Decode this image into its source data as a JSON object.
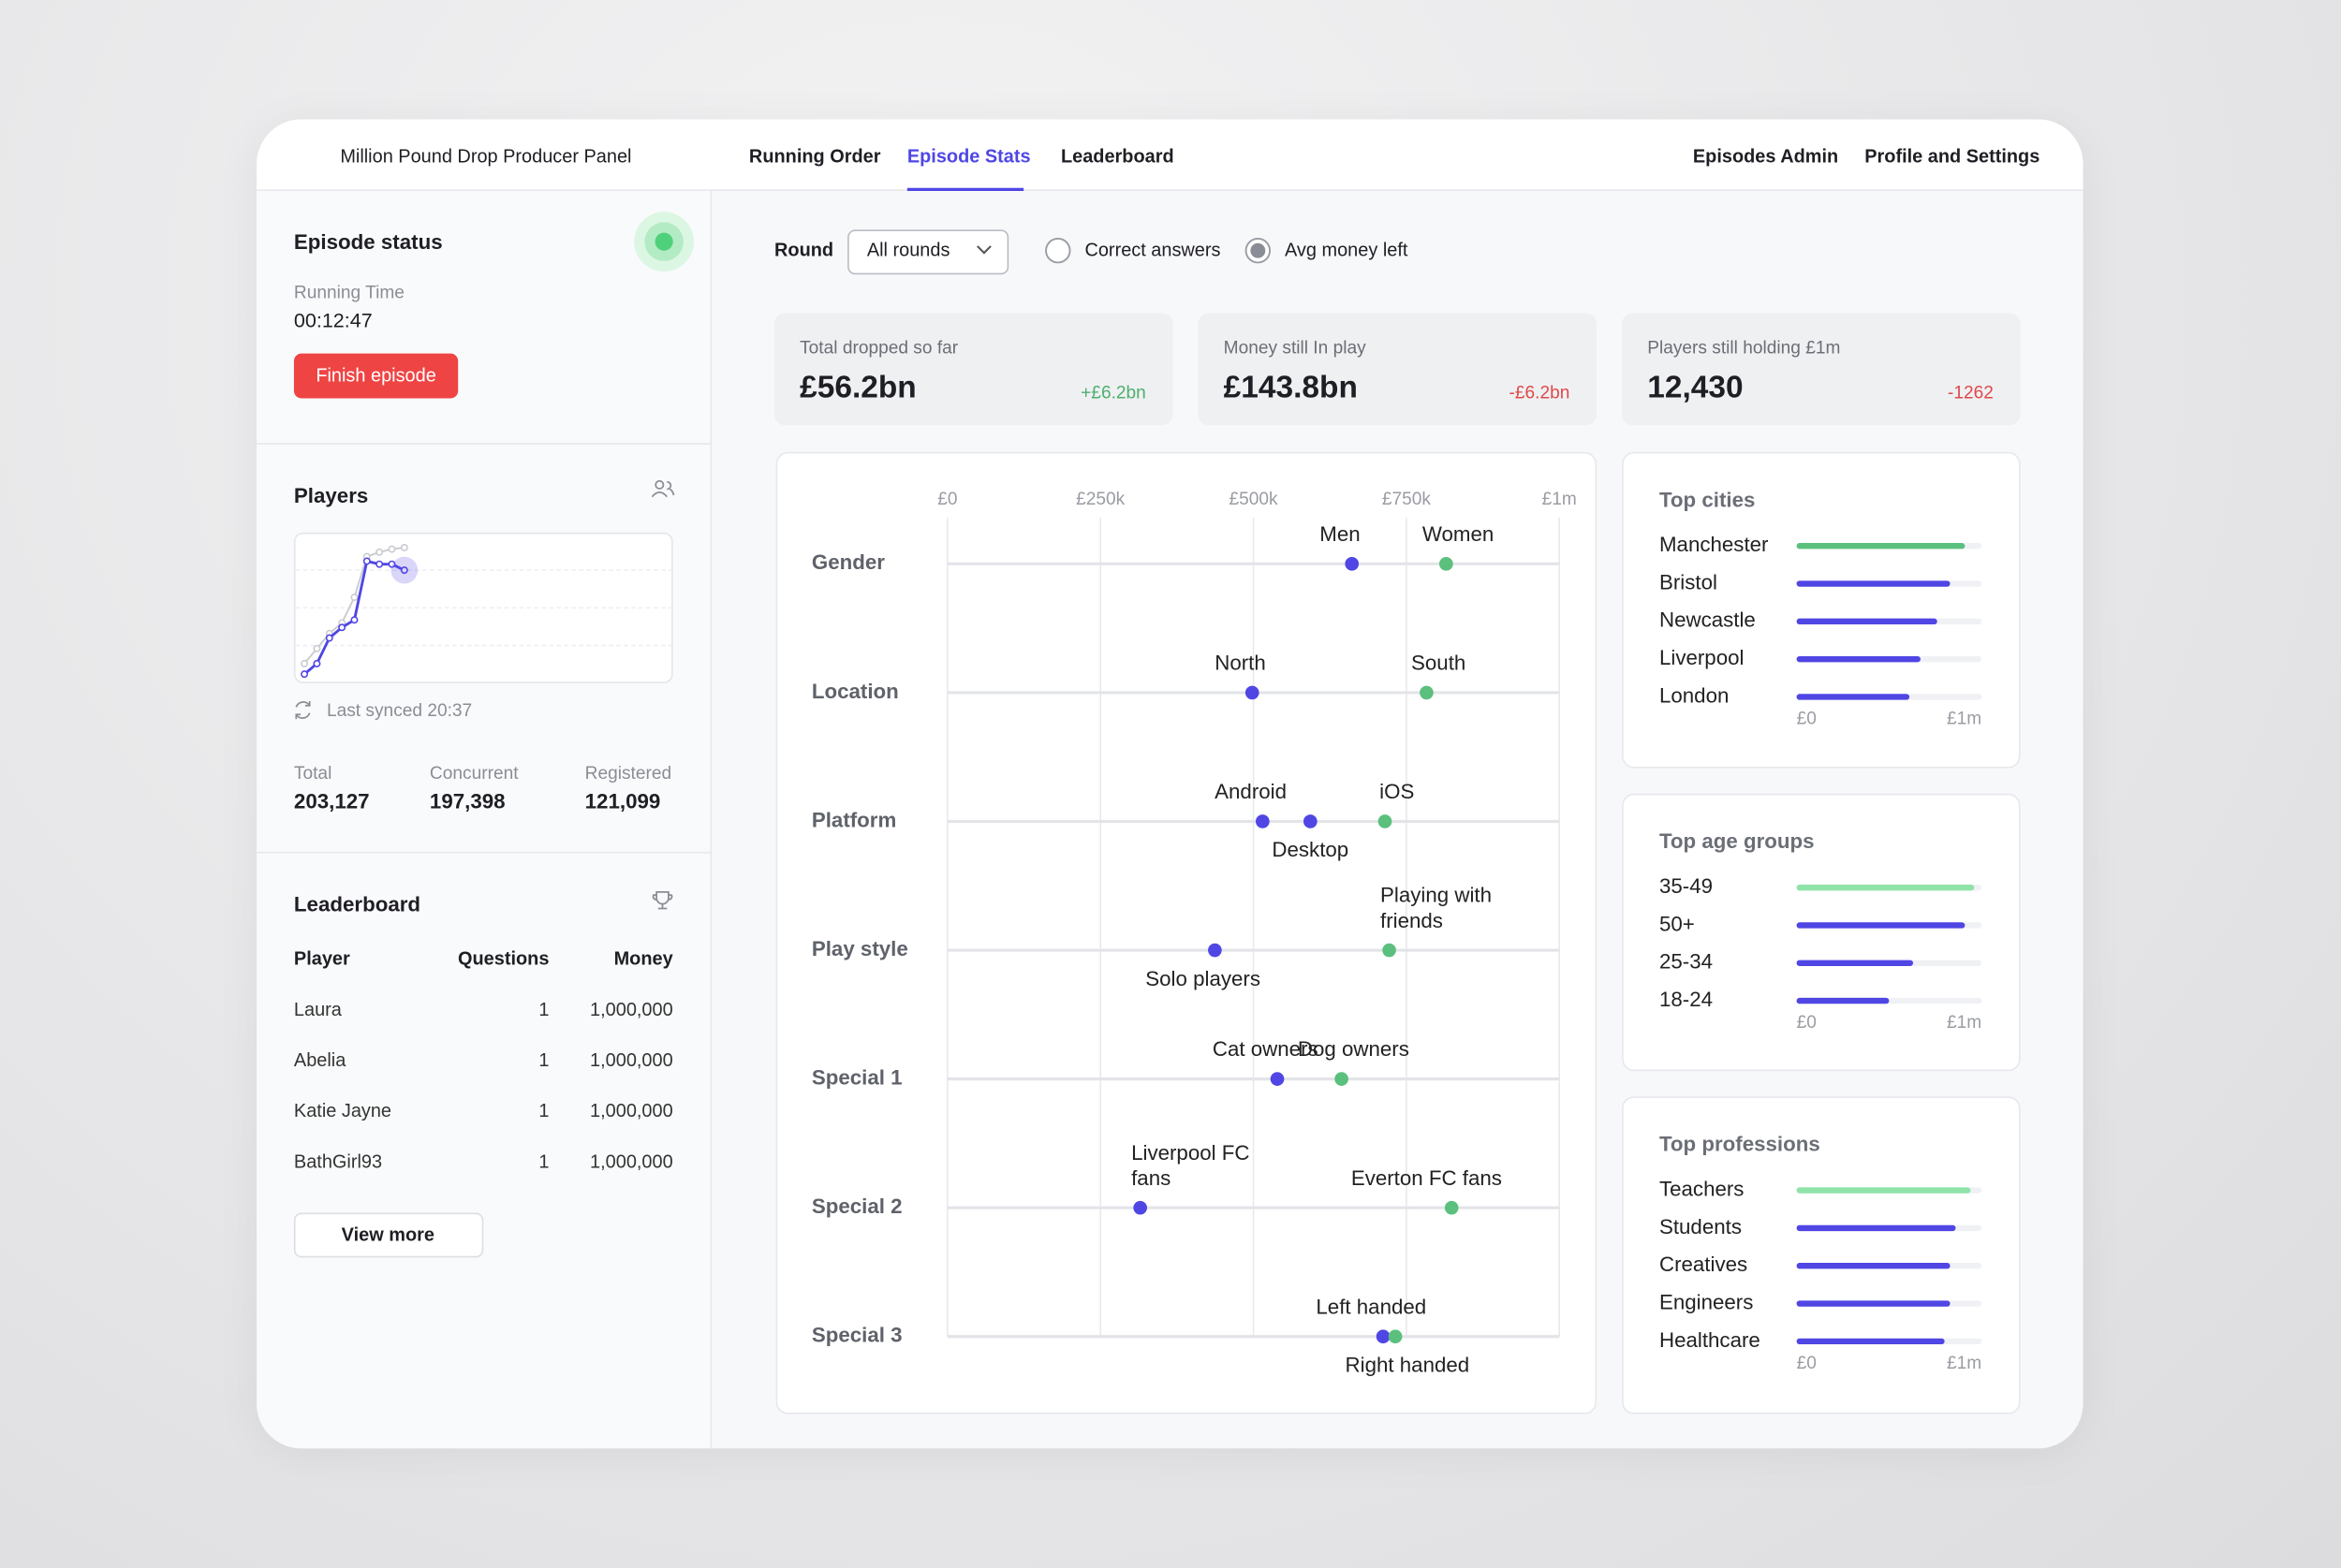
{
  "header": {
    "title": "Million Pound Drop Producer Panel",
    "nav": [
      {
        "label": "Running Order"
      },
      {
        "label": "Episode Stats",
        "active": true
      },
      {
        "label": "Leaderboard"
      }
    ],
    "right_nav": [
      "Episodes Admin",
      "Profile and Settings"
    ]
  },
  "episode_status": {
    "title": "Episode status",
    "running_time_label": "Running Time",
    "running_time": "00:12:47",
    "button": "Finish episode"
  },
  "players": {
    "title": "Players",
    "chart": {
      "type": "line",
      "ylim": [
        0,
        100
      ],
      "yticks": [
        25,
        50,
        75
      ],
      "grid": true,
      "series": [
        {
          "color": "#c9cbd1",
          "values": [
            13,
            23,
            33,
            40,
            57,
            84,
            87,
            89,
            90
          ]
        },
        {
          "color": "#5046e4",
          "values": [
            6,
            13,
            30,
            37,
            42,
            81,
            79,
            79,
            75
          ]
        }
      ]
    },
    "sync": "Last synced 20:37",
    "stats": [
      {
        "label": "Total",
        "value": "203,127"
      },
      {
        "label": "Concurrent",
        "value": "197,398"
      },
      {
        "label": "Registered",
        "value": "121,099"
      }
    ]
  },
  "leaderboard": {
    "title": "Leaderboard",
    "columns": [
      "Player",
      "Questions",
      "Money"
    ],
    "rows": [
      [
        "Laura",
        "1",
        "1,000,000"
      ],
      [
        "Abelia",
        "1",
        "1,000,000"
      ],
      [
        "Katie Jayne",
        "1",
        "1,000,000"
      ],
      [
        "BathGirl93",
        "1",
        "1,000,000"
      ]
    ],
    "button": "View more"
  },
  "filters": {
    "round_label": "Round",
    "round_value": "All rounds",
    "options": [
      {
        "label": "Correct answers",
        "selected": false
      },
      {
        "label": "Avg money left",
        "selected": true
      }
    ]
  },
  "kpis": [
    {
      "label": "Total dropped so far",
      "value": "£56.2bn",
      "delta": "+£6.2bn",
      "delta_color": "#4caf6e"
    },
    {
      "label": "Money still In play",
      "value": "£143.8bn",
      "delta": "-£6.2bn",
      "delta_color": "#e04848"
    },
    {
      "label": "Players still holding £1m",
      "value": "12,430",
      "delta": "-1262",
      "delta_color": "#e04848"
    }
  ],
  "dot_plot": {
    "type": "dot",
    "xlim": [
      0,
      1000000
    ],
    "xticks": [
      {
        "value": 0,
        "label": "£0"
      },
      {
        "value": 250000,
        "label": "£250k"
      },
      {
        "value": 500000,
        "label": "£500k"
      },
      {
        "value": 750000,
        "label": "£750k"
      },
      {
        "value": 1000000,
        "label": "£1m"
      }
    ],
    "grid": true,
    "rows": [
      {
        "name": "Gender",
        "points": [
          {
            "name": "Men",
            "value": 661000,
            "color": "#5046e4"
          },
          {
            "name": "Women",
            "value": 815000,
            "color": "#5bc07d"
          }
        ]
      },
      {
        "name": "Location",
        "points": [
          {
            "name": "North",
            "value": 498000,
            "color": "#5046e4"
          },
          {
            "name": "South",
            "value": 783000,
            "color": "#5bc07d"
          }
        ]
      },
      {
        "name": "Platform",
        "points": [
          {
            "name": "Android",
            "value": 515000,
            "color": "#5046e4"
          },
          {
            "name": "Desktop",
            "value": 593000,
            "color": "#5046e4"
          },
          {
            "name": "iOS",
            "value": 715000,
            "color": "#5bc07d"
          }
        ]
      },
      {
        "name": "Play style",
        "points": [
          {
            "name": "Solo players",
            "value": 437000,
            "color": "#5046e4"
          },
          {
            "name": "Playing with friends",
            "value": 722000,
            "color": "#5bc07d"
          }
        ]
      },
      {
        "name": "Special 1",
        "points": [
          {
            "name": "Cat owners",
            "value": 539000,
            "color": "#5046e4"
          },
          {
            "name": "Dog owners",
            "value": 644000,
            "color": "#5bc07d"
          }
        ]
      },
      {
        "name": "Special 2",
        "points": [
          {
            "name": "Liverpool FC fans",
            "value": 315000,
            "color": "#5046e4"
          },
          {
            "name": "Everton FC fans",
            "value": 824000,
            "color": "#5bc07d"
          }
        ]
      },
      {
        "name": "Special 3",
        "points": [
          {
            "name": "Left handed",
            "value": 712000,
            "color": "#5046e4"
          },
          {
            "name": "Right handed",
            "value": 732000,
            "color": "#5bc07d"
          }
        ]
      }
    ]
  },
  "top_cities": {
    "type": "bar",
    "title": "Top cities",
    "categories": [
      "Manchester",
      "Bristol",
      "Newcastle",
      "Liverpool",
      "London"
    ],
    "values": [
      910000,
      830000,
      760000,
      670000,
      610000
    ],
    "colors": [
      "#5bc07d",
      "#5046e4",
      "#5046e4",
      "#5046e4",
      "#5046e4"
    ],
    "xlim": [
      0,
      1000000
    ],
    "xticks": [
      {
        "value": 0,
        "label": "£0"
      },
      {
        "value": 1000000,
        "label": "£1m"
      }
    ]
  },
  "top_age_groups": {
    "type": "bar",
    "title": "Top age groups",
    "categories": [
      "35-49",
      "50+",
      "25-34",
      "18-24"
    ],
    "values": [
      960000,
      910000,
      630000,
      500000
    ],
    "colors": [
      "#8fe3a9",
      "#5046e4",
      "#5046e4",
      "#5046e4"
    ],
    "xlim": [
      0,
      1000000
    ],
    "xticks": [
      {
        "value": 0,
        "label": "£0"
      },
      {
        "value": 1000000,
        "label": "£1m"
      }
    ]
  },
  "top_professions": {
    "type": "bar",
    "title": "Top professions",
    "categories": [
      "Teachers",
      "Students",
      "Creatives",
      "Engineers",
      "Healthcare"
    ],
    "values": [
      940000,
      860000,
      830000,
      830000,
      800000
    ],
    "colors": [
      "#8fe3a9",
      "#5046e4",
      "#5046e4",
      "#5046e4",
      "#5046e4"
    ],
    "xlim": [
      0,
      1000000
    ],
    "xticks": [
      {
        "value": 0,
        "label": "£0"
      },
      {
        "value": 1000000,
        "label": "£1m"
      }
    ]
  }
}
